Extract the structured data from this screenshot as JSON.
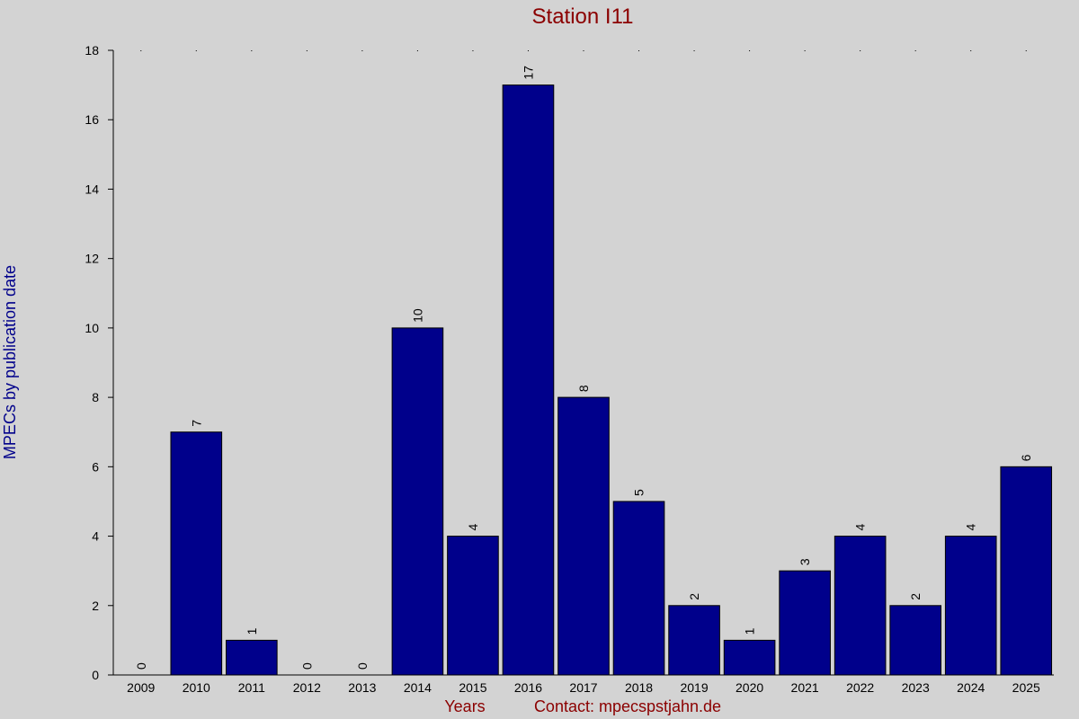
{
  "chart_data": {
    "type": "bar",
    "title": "Station I11",
    "xlabel": "Years",
    "ylabel": "MPECs by publication date",
    "contact": "Contact: mpecspstjahn.de",
    "categories": [
      "2009",
      "2010",
      "2011",
      "2012",
      "2013",
      "2014",
      "2015",
      "2016",
      "2017",
      "2018",
      "2019",
      "2020",
      "2021",
      "2022",
      "2023",
      "2024",
      "2025"
    ],
    "values": [
      0,
      7,
      1,
      0,
      0,
      10,
      4,
      17,
      8,
      5,
      2,
      1,
      3,
      4,
      2,
      4,
      6
    ],
    "ylim": [
      0,
      18
    ],
    "yticks": [
      0,
      2,
      4,
      6,
      8,
      10,
      12,
      14,
      16,
      18
    ],
    "grid": "dotted at top only",
    "colors": {
      "bar": "#00008b",
      "background": "#d3d3d3",
      "title": "#8b0000",
      "ylabel": "#00008b",
      "xlabel": "#8b0000"
    }
  }
}
